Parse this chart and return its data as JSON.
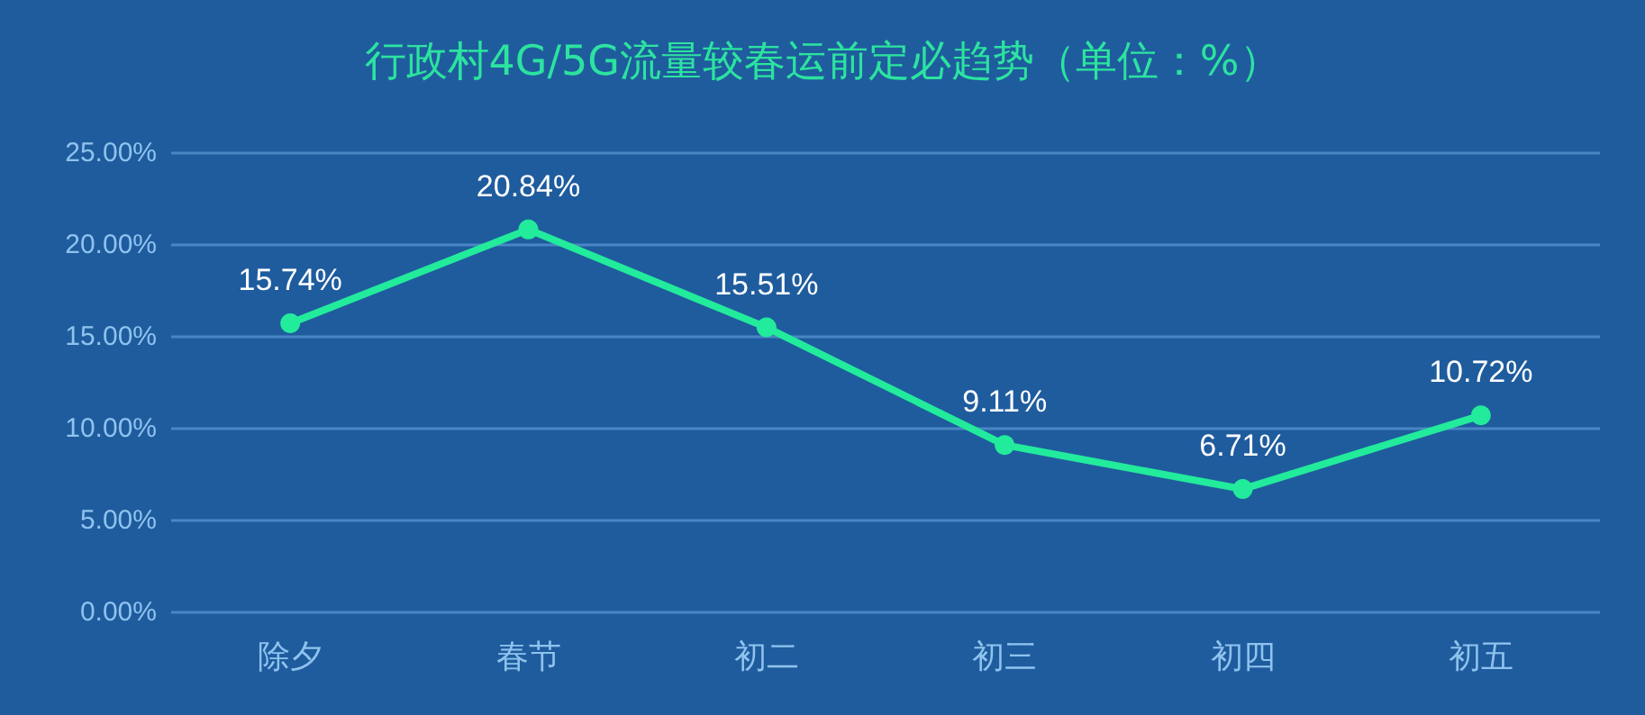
{
  "chart_data": {
    "type": "line",
    "title": "行政村4G/5G流量较春运前定必趋势（单位：%）",
    "categories": [
      "除夕",
      "春节",
      "初二",
      "初三",
      "初四",
      "初五"
    ],
    "series": [
      {
        "color": "#22eb9b",
        "values": [
          15.74,
          20.84,
          15.51,
          9.11,
          6.71,
          10.72
        ],
        "value_labels": [
          "15.74%",
          "20.84%",
          "15.51%",
          "9.11%",
          "6.71%",
          "10.72%"
        ]
      }
    ],
    "ylim": [
      0,
      25
    ],
    "yticks": [
      {
        "value": 0,
        "label": "0.00%"
      },
      {
        "value": 5,
        "label": "5.00%"
      },
      {
        "value": 10,
        "label": "10.00%"
      },
      {
        "value": 15,
        "label": "15.00%"
      },
      {
        "value": 20,
        "label": "20.00%"
      },
      {
        "value": 25,
        "label": "25.00%"
      }
    ],
    "grid": "y",
    "marker": "circle",
    "line_style": "solid"
  }
}
